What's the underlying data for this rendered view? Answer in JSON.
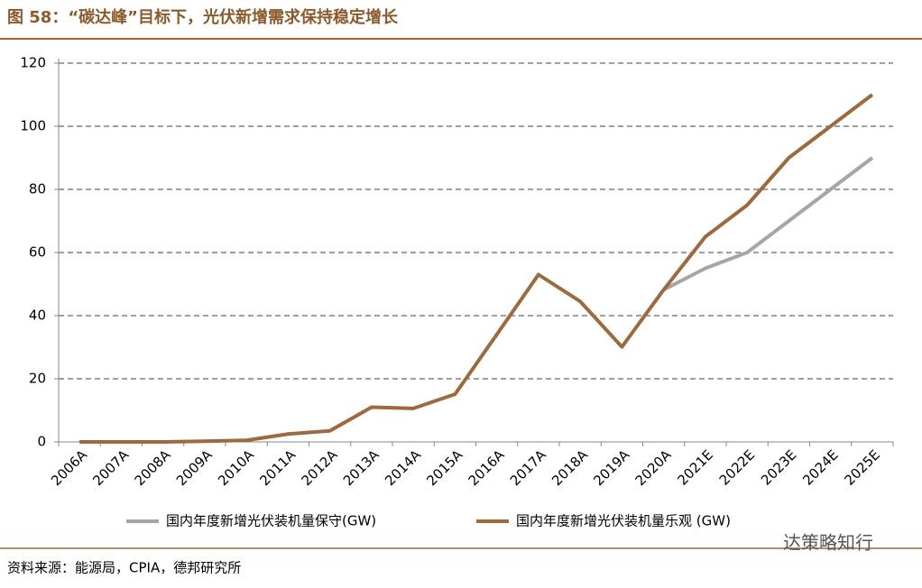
{
  "chart_data": {
    "type": "line",
    "title": "图 58：“碳达峰”目标下，光伏新增需求保持稳定增长",
    "source": "资料来源：能源局，CPIA，德邦研究所",
    "watermark": "达策略知行",
    "categories": [
      "2006A",
      "2007A",
      "2008A",
      "2009A",
      "2010A",
      "2011A",
      "2012A",
      "2013A",
      "2014A",
      "2015A",
      "2016A",
      "2017A",
      "2018A",
      "2019A",
      "2020A",
      "2021E",
      "2022E",
      "2023E",
      "2024E",
      "2025E"
    ],
    "series": [
      {
        "name": "国内年度新增光伏装机量保守(GW)",
        "color": "#a6a6a6",
        "values": [
          null,
          null,
          null,
          null,
          null,
          null,
          null,
          null,
          null,
          null,
          null,
          null,
          null,
          null,
          48.2,
          55,
          60,
          70,
          80,
          90
        ]
      },
      {
        "name": "国内年度新增光伏装机量乐观 (GW)",
        "color": "#9c6a3e",
        "values": [
          0,
          0,
          0,
          0.2,
          0.5,
          2.5,
          3.5,
          11,
          10.6,
          15.1,
          34,
          53,
          44.5,
          30.1,
          48.2,
          65,
          75,
          90,
          100,
          110
        ]
      }
    ],
    "ylim": [
      0,
      120
    ],
    "yticks": [
      0,
      20,
      40,
      60,
      80,
      100,
      120
    ],
    "grid": true
  }
}
